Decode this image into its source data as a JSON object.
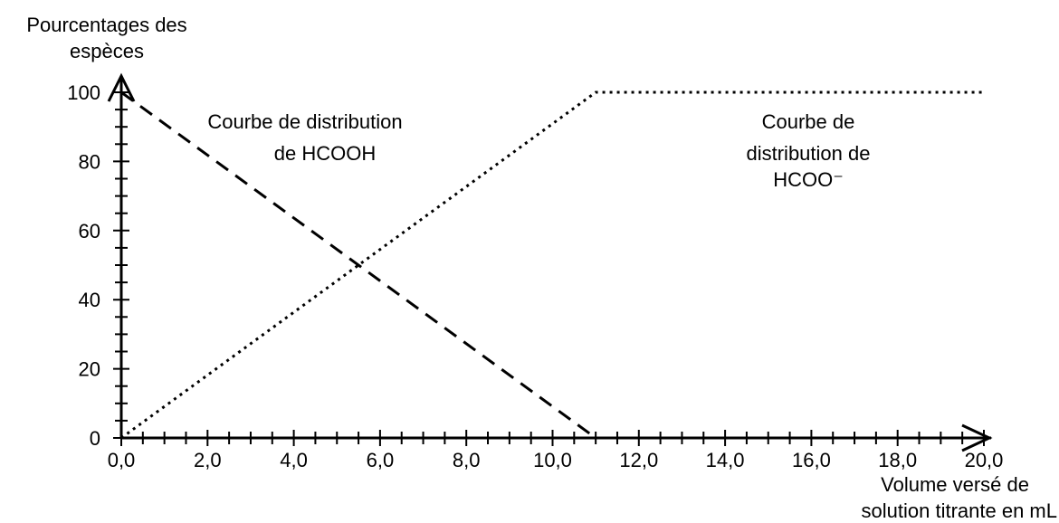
{
  "chart_data": {
    "type": "line",
    "ylabel": [
      "Pourcentages des",
      "espèces"
    ],
    "xlabel": [
      "Volume versé de",
      "solution titrante en mL"
    ],
    "xlim": [
      0,
      20
    ],
    "ylim": [
      0,
      100
    ],
    "x_ticks": [
      "0,0",
      "2,0",
      "4,0",
      "6,0",
      "8,0",
      "10,0",
      "12,0",
      "14,0",
      "16,0",
      "18,0",
      "20,0"
    ],
    "y_ticks": [
      "0",
      "20",
      "40",
      "60",
      "80",
      "100"
    ],
    "grid": false,
    "series": [
      {
        "name": "Courbe de distribution de HCOOH",
        "style": "dashed",
        "x": [
          0,
          11,
          20
        ],
        "y": [
          100,
          0,
          0
        ]
      },
      {
        "name": "Courbe de distribution de HCOO⁻",
        "style": "dotted",
        "x": [
          0,
          11,
          20
        ],
        "y": [
          0,
          100,
          100
        ]
      }
    ],
    "annotations": {
      "hcooh": [
        "Courbe de distribution",
        "de HCOOH"
      ],
      "hcoo": [
        "Courbe de",
        "distribution de",
        "HCOO⁻"
      ]
    },
    "colors": {
      "axis": "#000000",
      "dashed_line": "#000000",
      "dotted_line": "#000000"
    }
  }
}
